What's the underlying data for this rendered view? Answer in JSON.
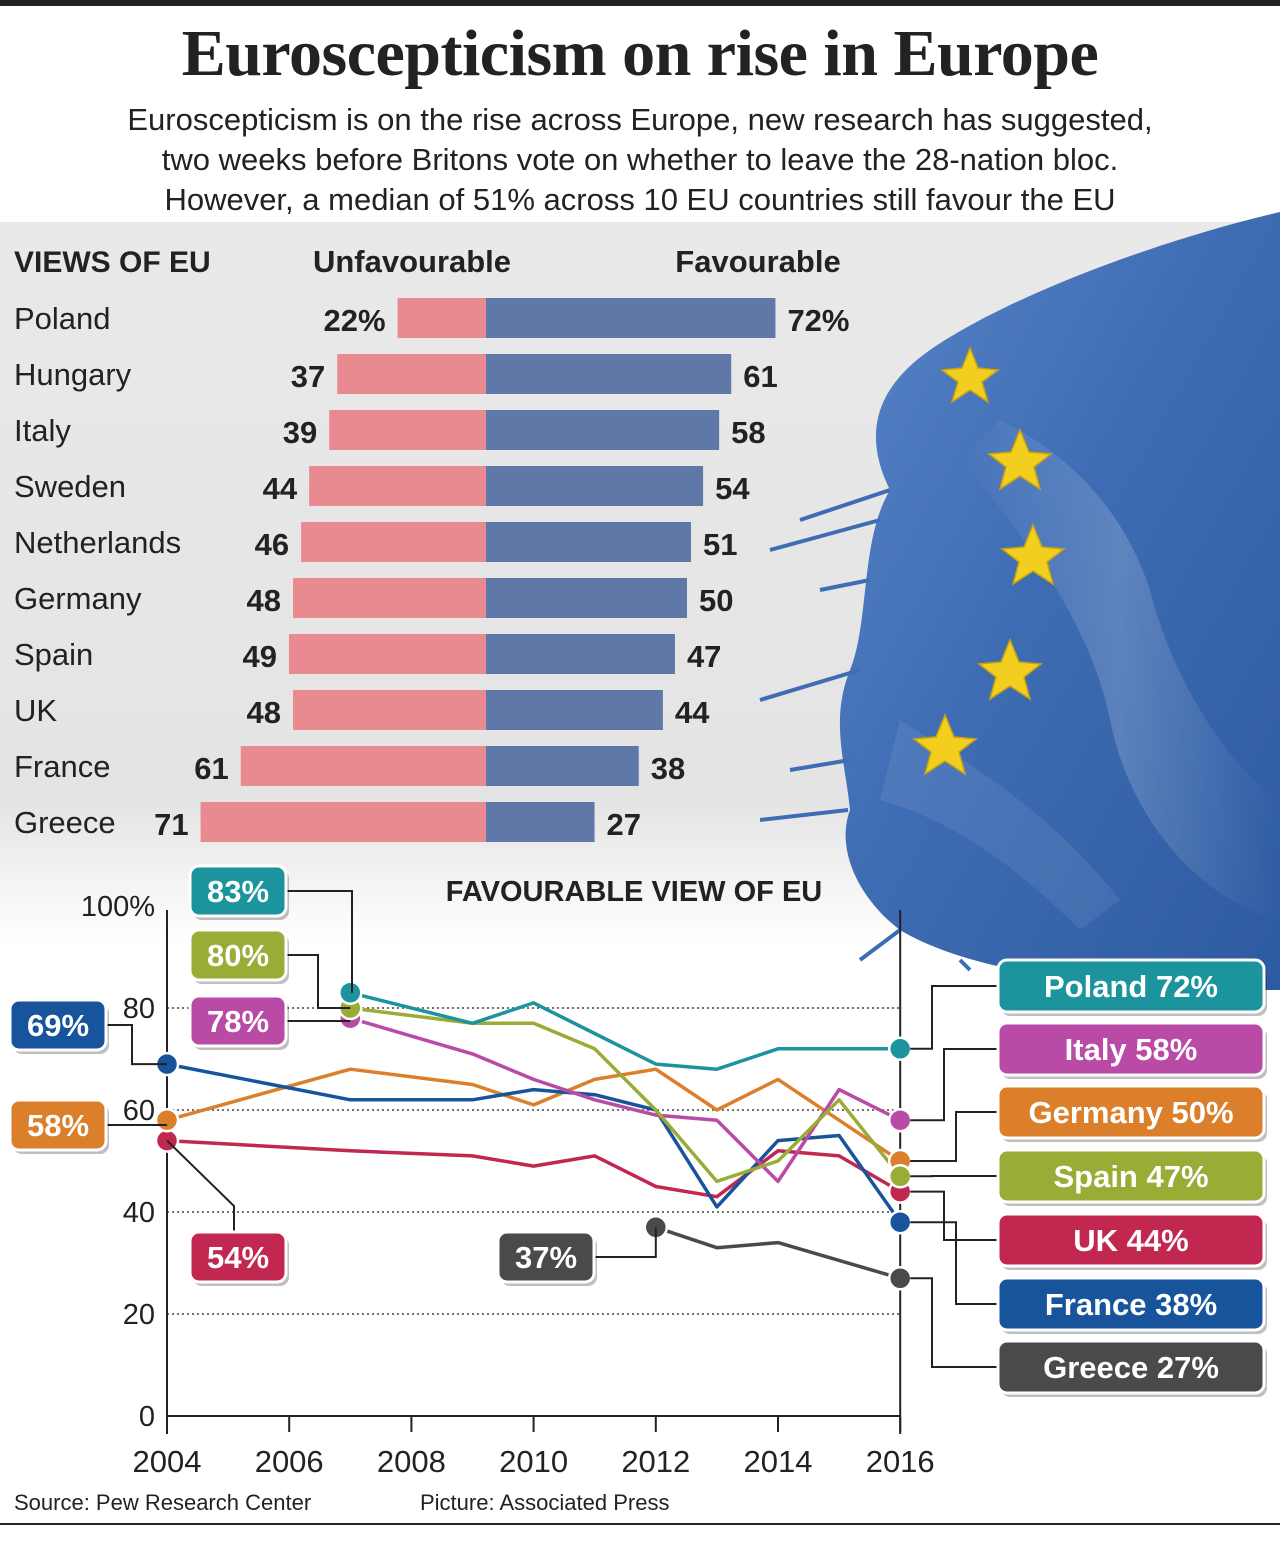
{
  "title": "Euroscepticism on rise in Europe",
  "subtitle_lines": [
    "Euroscepticism is on the rise across Europe, new research has suggested,",
    "two weeks before Britons vote on whether to leave the 28-nation bloc.",
    "However, a median of 51% across 10 EU countries still favour the EU"
  ],
  "footer": {
    "source": "Source: Pew Research Center",
    "picture": "Picture: Associated Press"
  },
  "colors": {
    "unfavourable": "#e88a8f",
    "favourable": "#6078a8",
    "flag": "#3f6db4",
    "star": "#f2cf1f"
  },
  "chart_data": [
    {
      "type": "bar",
      "title": "VIEWS OF EU",
      "series": [
        {
          "name": "Unfavourable",
          "values": [
            22,
            37,
            39,
            44,
            46,
            48,
            49,
            48,
            61,
            71
          ]
        },
        {
          "name": "Favourable",
          "values": [
            72,
            61,
            58,
            54,
            51,
            50,
            47,
            44,
            38,
            27
          ]
        }
      ],
      "categories": [
        "Poland",
        "Hungary",
        "Italy",
        "Sweden",
        "Netherlands",
        "Germany",
        "Spain",
        "UK",
        "France",
        "Greece"
      ],
      "value_labels": {
        "unfavourable": [
          "22%",
          "37",
          "39",
          "44",
          "46",
          "48",
          "49",
          "48",
          "61",
          "71"
        ],
        "favourable": [
          "72%",
          "61",
          "58",
          "54",
          "51",
          "50",
          "47",
          "44",
          "38",
          "27"
        ]
      }
    },
    {
      "type": "line",
      "title": "FAVOURABLE VIEW OF EU",
      "xlim": [
        2004,
        2016
      ],
      "ylim": [
        0,
        100
      ],
      "x_ticks": [
        "2004",
        "2006",
        "2008",
        "2010",
        "2012",
        "2014",
        "2016"
      ],
      "y_ticks": [
        "0",
        "20",
        "40",
        "60",
        "80",
        "100%"
      ],
      "grid": "dotted at 20, 40, 60, 80",
      "series": [
        {
          "name": "Poland",
          "color": "#1b949e",
          "label": "Poland 72%",
          "points": [
            [
              2007,
              83
            ],
            [
              2009,
              77
            ],
            [
              2010,
              81
            ],
            [
              2011,
              75
            ],
            [
              2012,
              69
            ],
            [
              2013,
              68
            ],
            [
              2014,
              72
            ],
            [
              2015,
              72
            ],
            [
              2016,
              72
            ]
          ]
        },
        {
          "name": "Spain",
          "color": "#9aab36",
          "label": "Spain 47%",
          "points": [
            [
              2007,
              80
            ],
            [
              2009,
              77
            ],
            [
              2010,
              77
            ],
            [
              2011,
              72
            ],
            [
              2012,
              60
            ],
            [
              2013,
              46
            ],
            [
              2014,
              50
            ],
            [
              2015,
              62
            ],
            [
              2016,
              47
            ]
          ]
        },
        {
          "name": "Italy",
          "color": "#b94aa5",
          "label": "Italy 58%",
          "points": [
            [
              2007,
              78
            ],
            [
              2009,
              71
            ],
            [
              2010,
              66
            ],
            [
              2011,
              62
            ],
            [
              2012,
              59
            ],
            [
              2013,
              58
            ],
            [
              2014,
              46
            ],
            [
              2015,
              64
            ],
            [
              2016,
              58
            ]
          ]
        },
        {
          "name": "France",
          "color": "#18549c",
          "label": "France 38%",
          "points": [
            [
              2004,
              69
            ],
            [
              2007,
              62
            ],
            [
              2009,
              62
            ],
            [
              2010,
              64
            ],
            [
              2011,
              63
            ],
            [
              2012,
              60
            ],
            [
              2013,
              41
            ],
            [
              2014,
              54
            ],
            [
              2015,
              55
            ],
            [
              2016,
              38
            ]
          ]
        },
        {
          "name": "Germany",
          "color": "#db7f2b",
          "label": "Germany 50%",
          "points": [
            [
              2004,
              58
            ],
            [
              2007,
              68
            ],
            [
              2009,
              65
            ],
            [
              2010,
              61
            ],
            [
              2011,
              66
            ],
            [
              2012,
              68
            ],
            [
              2013,
              60
            ],
            [
              2014,
              66
            ],
            [
              2015,
              58
            ],
            [
              2016,
              50
            ]
          ]
        },
        {
          "name": "UK",
          "color": "#c2284f",
          "label": "UK 44%",
          "points": [
            [
              2004,
              54
            ],
            [
              2007,
              52
            ],
            [
              2009,
              51
            ],
            [
              2010,
              49
            ],
            [
              2011,
              51
            ],
            [
              2012,
              45
            ],
            [
              2013,
              43
            ],
            [
              2014,
              52
            ],
            [
              2015,
              51
            ],
            [
              2016,
              44
            ]
          ]
        },
        {
          "name": "Greece",
          "color": "#4a4a4a",
          "label": "Greece 27%",
          "points": [
            [
              2012,
              37
            ],
            [
              2013,
              33
            ],
            [
              2014,
              34
            ],
            [
              2016,
              27
            ]
          ]
        }
      ],
      "start_labels": [
        "83%",
        "80%",
        "78%",
        "69%",
        "58%",
        "54%",
        "37%"
      ]
    }
  ]
}
